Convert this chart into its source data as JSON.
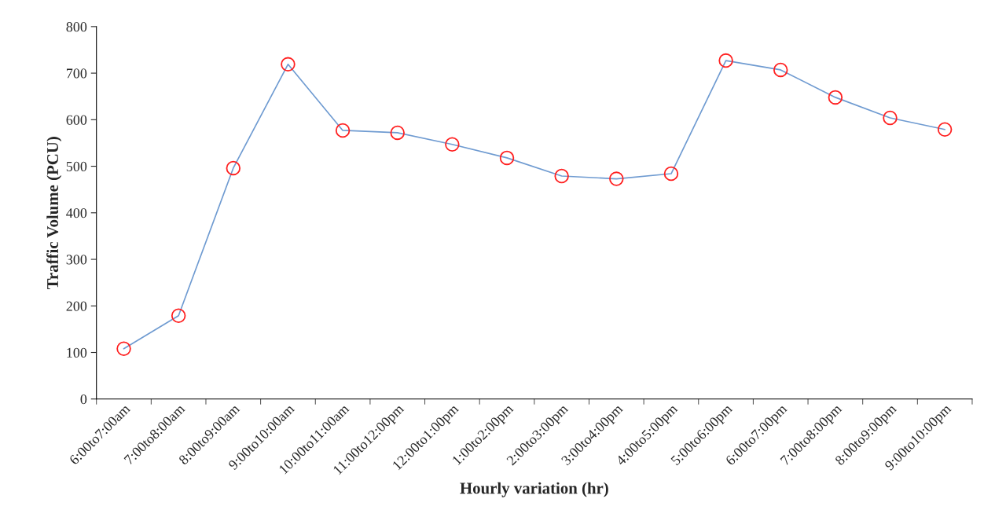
{
  "chart_data": {
    "type": "line",
    "xlabel": "Hourly variation (hr)",
    "ylabel": "Traffic Volume (PCU)",
    "categories": [
      "6:00to7:00am",
      "7:00to8:00am",
      "8:00to9:00am",
      "9:00to10:00am",
      "10:00to11:00am",
      "11:00to12:00pm",
      "12:00to1:00pm",
      "1:00to2:00pm",
      "2:00to3:00pm",
      "3:00to4:00pm",
      "4:00to5:00pm",
      "5:00to6:00pm",
      "6:00to7:00pm",
      "7:00to8:00pm",
      "8:00to9:00pm",
      "9:00to10:00pm"
    ],
    "series": [
      {
        "color": "#6f9bd1",
        "values": [
          108,
          179,
          496,
          719,
          577,
          572,
          547,
          518,
          479,
          473,
          484,
          727,
          707,
          648,
          604,
          579
        ]
      }
    ],
    "ylim": [
      0,
      800
    ],
    "yticks": [
      0,
      100,
      200,
      300,
      400,
      500,
      600,
      700,
      800
    ],
    "grid": false,
    "legend": false,
    "marker": "circle",
    "line_style": "solid"
  }
}
